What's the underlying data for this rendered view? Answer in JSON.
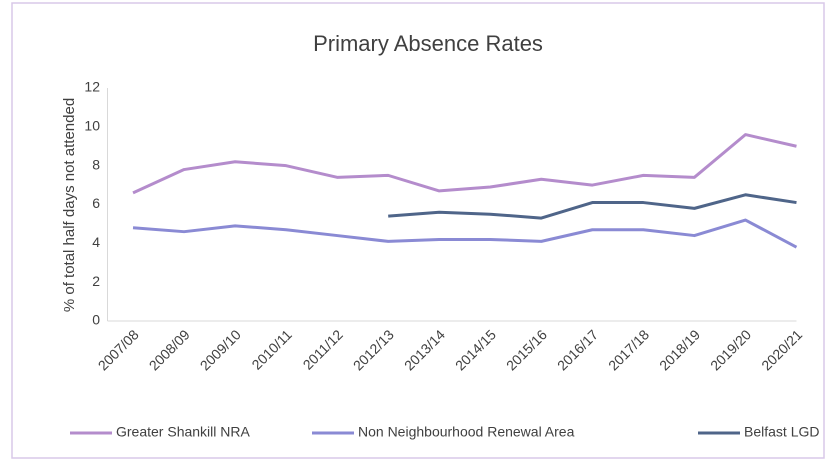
{
  "chart_data": {
    "type": "line",
    "title": "Primary Absence Rates",
    "y_label": "% of total half days not attended",
    "categories": [
      "2007/08",
      "2008/09",
      "2009/10",
      "2010/11",
      "2011/12",
      "2012/13",
      "2013/14",
      "2014/15",
      "2015/16",
      "2016/17",
      "2017/18",
      "2018/19",
      "2019/20",
      "2020/21"
    ],
    "series": [
      {
        "name": "Greater Shankill NRA",
        "color": "#b48ccc",
        "values": [
          6.6,
          7.8,
          8.2,
          8.0,
          7.4,
          7.5,
          6.7,
          6.9,
          7.3,
          7.0,
          7.5,
          7.4,
          9.6,
          9.0
        ]
      },
      {
        "name": "Non Neighbourhood Renewal Area",
        "color": "#8a8ad4",
        "values": [
          4.8,
          4.6,
          4.9,
          4.7,
          4.4,
          4.1,
          4.2,
          4.2,
          4.1,
          4.7,
          4.7,
          4.4,
          5.2,
          3.8
        ]
      },
      {
        "name": "Belfast LGD",
        "color": "#4f6589",
        "values": [
          null,
          null,
          null,
          null,
          null,
          5.4,
          5.6,
          5.5,
          5.3,
          6.1,
          6.1,
          5.8,
          6.5,
          6.1
        ]
      }
    ],
    "ylim": [
      0,
      12
    ],
    "yticks": [
      0,
      2,
      4,
      6,
      8,
      10,
      12
    ],
    "legend": "bottom"
  }
}
